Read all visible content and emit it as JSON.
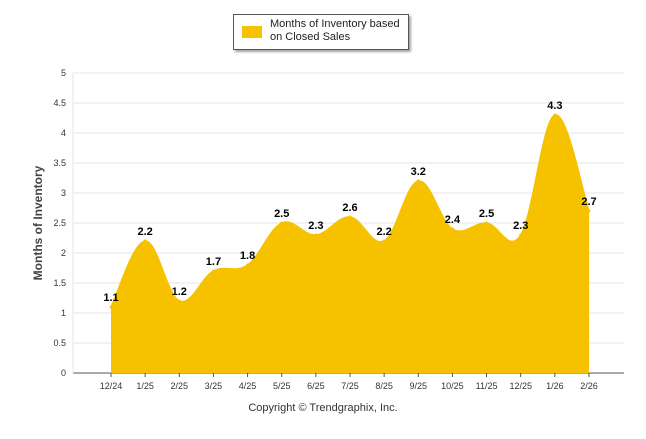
{
  "colors": {
    "series": "#f6c200",
    "grid": "#e6e6e6",
    "axis": "#555555",
    "label": "#000000"
  },
  "legend": {
    "label": "Months of Inventory based on Closed Sales"
  },
  "copyright": "Copyright © Trendgraphix, Inc.",
  "chart_data": {
    "type": "area",
    "title": "",
    "xlabel": "",
    "ylabel": "Months of Inventory",
    "ylim": [
      0,
      5
    ],
    "yticks": [
      "0",
      "0.5",
      "1",
      "1.5",
      "2",
      "2.5",
      "3",
      "3.5",
      "4",
      "4.5",
      "5"
    ],
    "categories": [
      "12/24",
      "1/25",
      "2/25",
      "3/25",
      "4/25",
      "5/25",
      "6/25",
      "7/25",
      "8/25",
      "9/25",
      "10/25",
      "11/25",
      "12/25",
      "1/26",
      "2/26"
    ],
    "series": [
      {
        "name": "Months of Inventory based on Closed Sales",
        "values": [
          1.1,
          2.2,
          1.2,
          1.7,
          1.8,
          2.5,
          2.3,
          2.6,
          2.2,
          3.2,
          2.4,
          2.5,
          2.3,
          4.3,
          2.7
        ],
        "labels": [
          "1.1",
          "2.2",
          "1.2",
          "1.7",
          "1.8",
          "2.5",
          "2.3",
          "2.6",
          "2.2",
          "3.2",
          "2.4",
          "2.5",
          "2.3",
          "4.3",
          "2.7"
        ]
      }
    ]
  }
}
